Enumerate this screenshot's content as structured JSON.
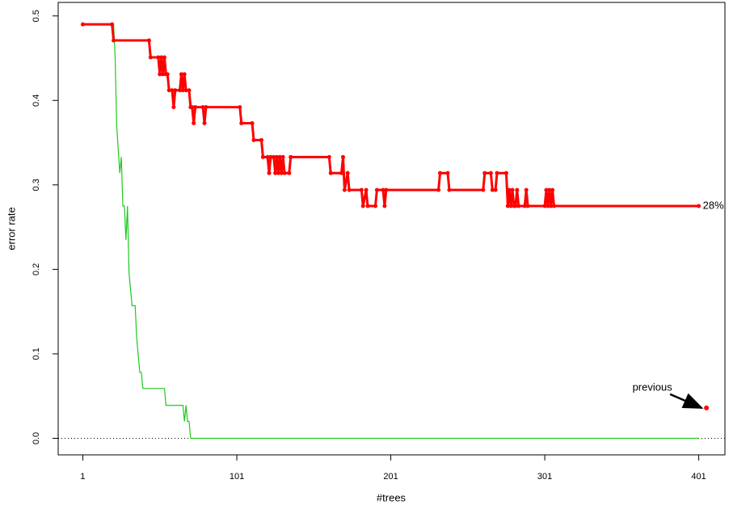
{
  "chart_data": {
    "type": "line",
    "x_label": "#trees",
    "y_label": "error rate",
    "xlim": [
      -15,
      418
    ],
    "ylim": [
      -0.0196,
      0.516
    ],
    "xticks": [
      1,
      101,
      201,
      301,
      401
    ],
    "yticks": [
      {
        "value": 0,
        "label": "0.0"
      },
      0.1,
      0.2,
      0.3,
      0.4,
      0.5
    ],
    "hline": 0,
    "series": [
      {
        "color": "#ff0000",
        "markers": true,
        "x": [
          1,
          20,
          21,
          44,
          45,
          50,
          51,
          52,
          53,
          54,
          55,
          56,
          57,
          59,
          60,
          61,
          64,
          65,
          66,
          67,
          68,
          70,
          71,
          72,
          73,
          74,
          79,
          80,
          81,
          103,
          104,
          111,
          112,
          117,
          118,
          121,
          122,
          123,
          125,
          126,
          127,
          128,
          129,
          130,
          131,
          132,
          135,
          136,
          161,
          162,
          169,
          170,
          171,
          173,
          174,
          182,
          183,
          185,
          186,
          191,
          192,
          196,
          197,
          198,
          232,
          233,
          238,
          239,
          261,
          262,
          266,
          267,
          269,
          270,
          276,
          277,
          278,
          279,
          280,
          281,
          282,
          283,
          284,
          288,
          289,
          290,
          301,
          302,
          303,
          304,
          305,
          306,
          307,
          401
        ],
        "values": [
          0.49,
          0.49,
          0.471,
          0.471,
          0.451,
          0.451,
          0.431,
          0.451,
          0.431,
          0.451,
          0.431,
          0.431,
          0.412,
          0.412,
          0.392,
          0.412,
          0.412,
          0.431,
          0.412,
          0.431,
          0.412,
          0.412,
          0.392,
          0.392,
          0.373,
          0.392,
          0.392,
          0.373,
          0.392,
          0.392,
          0.373,
          0.373,
          0.353,
          0.353,
          0.333,
          0.333,
          0.314,
          0.333,
          0.333,
          0.314,
          0.333,
          0.314,
          0.333,
          0.314,
          0.333,
          0.314,
          0.314,
          0.333,
          0.333,
          0.314,
          0.314,
          0.333,
          0.294,
          0.314,
          0.294,
          0.294,
          0.275,
          0.294,
          0.275,
          0.275,
          0.294,
          0.294,
          0.275,
          0.294,
          0.294,
          0.314,
          0.314,
          0.294,
          0.294,
          0.314,
          0.314,
          0.294,
          0.294,
          0.314,
          0.314,
          0.275,
          0.294,
          0.275,
          0.294,
          0.275,
          0.275,
          0.294,
          0.275,
          0.275,
          0.294,
          0.275,
          0.275,
          0.294,
          0.275,
          0.294,
          0.275,
          0.294,
          0.275,
          0.275
        ]
      },
      {
        "color": "#1ec81e",
        "markers": false,
        "x": [
          1,
          21,
          22,
          23,
          25,
          26,
          27,
          28,
          29,
          30,
          31,
          32,
          33,
          35,
          36,
          37,
          38,
          39,
          40,
          54,
          55,
          66,
          67,
          68,
          69,
          70,
          71,
          401
        ],
        "values": [
          0.49,
          0.49,
          0.45,
          0.37,
          0.314,
          0.333,
          0.275,
          0.275,
          0.235,
          0.275,
          0.196,
          0.176,
          0.157,
          0.157,
          0.118,
          0.098,
          0.078,
          0.078,
          0.059,
          0.059,
          0.039,
          0.039,
          0.02,
          0.039,
          0.02,
          0.02,
          0,
          0
        ]
      }
    ],
    "annotations": [
      {
        "text": "28%"
      },
      {
        "text": "previous",
        "x": 406,
        "y": 0.036,
        "color": "#ff0000"
      }
    ]
  }
}
